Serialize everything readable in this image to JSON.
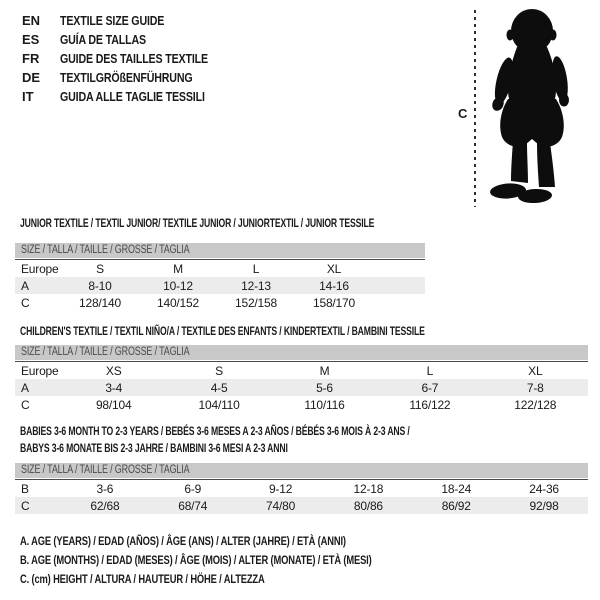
{
  "colors": {
    "text": "#1a1a1a",
    "size_bar_background": "#c8c8c8",
    "size_bar_text": "#4a4a4a",
    "row_stripe": "#ececec",
    "silhouette": "#0d0d0d"
  },
  "languages": [
    {
      "code": "EN",
      "title": "TEXTILE SIZE GUIDE"
    },
    {
      "code": "ES",
      "title": "GUÍA DE TALLAS"
    },
    {
      "code": "FR",
      "title": "GUIDE DES TAILLES TEXTILE"
    },
    {
      "code": "DE",
      "title": "TEXTILGRÖßENFÜHRUNG"
    },
    {
      "code": "IT",
      "title": "GUIDA ALLE TAGLIE TESSILI"
    }
  ],
  "figure": {
    "height_label": "C",
    "image": "baby-toddler-silhouette"
  },
  "tables": [
    {
      "title_lines": [
        "JUNIOR TEXTILE / TEXTIL JUNIOR/ TEXTILE JUNIOR / JUNIORTEXTIL / JUNIOR TESSILE"
      ],
      "size_header": "SIZE / TALLA / TAILLE / GRÖSSE / TAGLIA",
      "rows": [
        [
          "Europe",
          "S",
          "M",
          "L",
          "XL"
        ],
        [
          "A",
          "8-10",
          "10-12",
          "12-13",
          "14-16"
        ],
        [
          "C",
          "128/140",
          "140/152",
          "152/158",
          "158/170"
        ]
      ]
    },
    {
      "title_lines": [
        "CHILDREN'S TEXTILE / TEXTIL NIÑO/A / TEXTILE DES ENFANTS / KINDERTEXTIL / BAMBINI TESSILE"
      ],
      "size_header": "SIZE / TALLA / TAILLE / GRÖSSE / TAGLIA",
      "rows": [
        [
          "Europe",
          "XS",
          "S",
          "M",
          "L",
          "XL"
        ],
        [
          "A",
          "3-4",
          "4-5",
          "5-6",
          "6-7",
          "7-8"
        ],
        [
          "C",
          "98/104",
          "104/110",
          "110/116",
          "116/122",
          "122/128"
        ]
      ]
    },
    {
      "title_lines": [
        "BABIES 3-6 MONTH TO 2-3 YEARS / BEBÉS 3-6 MESES A 2-3 AÑOS / BÉBÉS 3-6 MOIS À 2-3 ANS /",
        "BABYS 3-6 MONATE BIS 2-3 JAHRE / BAMBINI 3-6 MESI A 2-3 ANNI"
      ],
      "size_header": "SIZE / TALLA / TAILLE / GRÖSSE / TAGLIA",
      "rows": [
        [
          "B",
          "3-6",
          "6-9",
          "9-12",
          "12-18",
          "18-24",
          "24-36"
        ],
        [
          "C",
          "62/68",
          "68/74",
          "74/80",
          "80/86",
          "86/92",
          "92/98"
        ]
      ]
    }
  ],
  "notes": [
    "A. AGE (YEARS) / EDAD (AÑOS) / ÂGE (ANS) / ALTER (JAHRE) / ETÀ (ANNI)",
    "B. AGE (MONTHS) / EDAD (MESES) / ÂGE (MOIS) / ALTER (MONATE) / ETÀ (MESI)",
    "C. (cm) HEIGHT / ALTURA / HAUTEUR / HÖHE / ALTEZZA"
  ]
}
